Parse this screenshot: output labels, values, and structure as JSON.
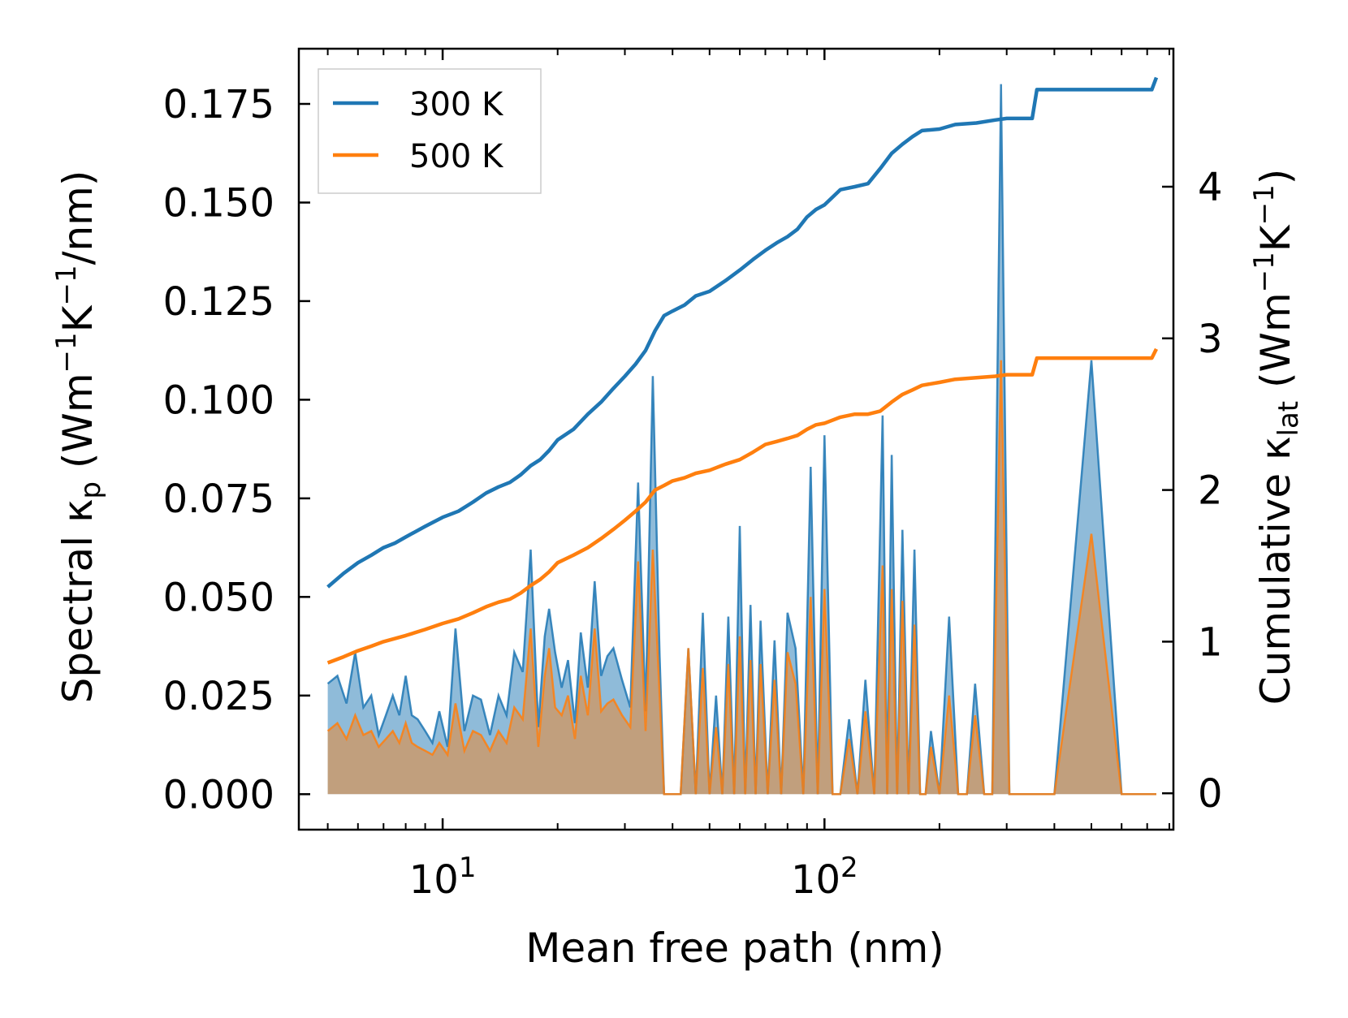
{
  "chart_data": {
    "type": "line",
    "xscale": "log",
    "xlabel": "Mean free path (nm)",
    "xlim": [
      4.2,
      820
    ],
    "x_ticks": [
      {
        "value": 10,
        "base": "10",
        "exp": "1"
      },
      {
        "value": 100,
        "base": "10",
        "exp": "2"
      }
    ],
    "y_left": {
      "label_parts": {
        "prefix": "Spectral κ",
        "sub": "p",
        "unit_open": " (Wm",
        "sup1": "−1",
        "mid": "K",
        "sup2": "−1",
        "unit_close": "/nm)"
      },
      "ylim": [
        -0.009,
        0.189
      ],
      "ticks": [
        0.0,
        0.025,
        0.05,
        0.075,
        0.1,
        0.125,
        0.15,
        0.175
      ],
      "tick_labels": [
        "0.000",
        "0.025",
        "0.050",
        "0.075",
        "0.100",
        "0.125",
        "0.150",
        "0.175"
      ]
    },
    "y_right": {
      "label_parts": {
        "prefix": "Cumulative κ",
        "sub": "lat",
        "unit_open": " (Wm",
        "sup1": "−1",
        "mid": "K",
        "sup2": "−1",
        "unit_close": ")"
      },
      "ylim": [
        -0.24,
        4.91
      ],
      "ticks": [
        0,
        1,
        2,
        3,
        4
      ],
      "tick_labels": [
        "0",
        "1",
        "2",
        "3",
        "4"
      ]
    },
    "legend": {
      "position": "top-left",
      "entries": [
        "300 K",
        "500 K"
      ]
    },
    "series": [
      {
        "name": "300 K",
        "color": "#1f77b4",
        "cumulative": {
          "x": [
            5,
            5.5,
            6,
            6.5,
            7,
            7.5,
            8,
            9,
            10,
            11,
            12,
            13,
            14,
            15,
            16,
            17,
            18,
            19,
            20,
            22,
            24,
            26,
            28,
            30,
            32,
            34,
            36,
            38,
            40,
            43,
            46,
            50,
            55,
            60,
            65,
            70,
            75,
            80,
            85,
            90,
            95,
            100,
            110,
            120,
            130,
            140,
            150,
            160,
            170,
            180,
            200,
            220,
            250,
            280,
            300,
            330,
            350,
            360,
            380,
            400,
            450,
            500,
            600,
            700,
            720,
            740
          ],
          "y": [
            1.36,
            1.45,
            1.52,
            1.57,
            1.62,
            1.65,
            1.69,
            1.76,
            1.82,
            1.86,
            1.92,
            1.98,
            2.02,
            2.05,
            2.1,
            2.16,
            2.2,
            2.26,
            2.33,
            2.4,
            2.5,
            2.58,
            2.67,
            2.75,
            2.83,
            2.92,
            3.05,
            3.15,
            3.18,
            3.22,
            3.28,
            3.31,
            3.38,
            3.45,
            3.52,
            3.58,
            3.63,
            3.67,
            3.72,
            3.8,
            3.85,
            3.88,
            3.98,
            4.0,
            4.02,
            4.12,
            4.22,
            4.28,
            4.33,
            4.37,
            4.38,
            4.41,
            4.42,
            4.44,
            4.45,
            4.45,
            4.45,
            4.64,
            4.64,
            4.64,
            4.64,
            4.64,
            4.64,
            4.64,
            4.64,
            4.72
          ]
        },
        "spectral": {
          "x": [
            5,
            5.3,
            5.6,
            5.9,
            6.2,
            6.5,
            6.8,
            7.1,
            7.4,
            7.7,
            8.0,
            8.3,
            8.6,
            9.0,
            9.4,
            9.8,
            10.3,
            10.8,
            11.4,
            12.0,
            12.6,
            13.3,
            14.0,
            14.7,
            15.4,
            16.2,
            17.0,
            17.8,
            18.5,
            19.0,
            19.7,
            20.5,
            21.3,
            22.2,
            23.0,
            24.0,
            25.0,
            26.0,
            27.0,
            28.0,
            29.5,
            31.0,
            32.5,
            34.0,
            35.5,
            37.0,
            38.0,
            39.0,
            40.5,
            42.0,
            44.0,
            46.0,
            48.0,
            50.0,
            52.0,
            54.0,
            56.0,
            58.0,
            60.0,
            62.0,
            64.0,
            66.0,
            68.0,
            71.0,
            74.0,
            77.0,
            80.0,
            84.0,
            88.0,
            92.0,
            96.0,
            100,
            105,
            110,
            116,
            122,
            128,
            135,
            142,
            146,
            150,
            155,
            160,
            166,
            172,
            178,
            184,
            190,
            200,
            212,
            224,
            236,
            248,
            262,
            275,
            290,
            305,
            320,
            340,
            350,
            360,
            370,
            400,
            500,
            600,
            700,
            740
          ],
          "y_lines": [
            0.028,
            0.03,
            0.023,
            0.036,
            0.022,
            0.025,
            0.015,
            0.02,
            0.025,
            0.02,
            0.03,
            0.02,
            0.019,
            0.016,
            0.013,
            0.021,
            0.012,
            0.042,
            0.016,
            0.025,
            0.024,
            0.015,
            0.025,
            0.02,
            0.036,
            0.031,
            0.062,
            0.017,
            0.04,
            0.047,
            0.036,
            0.027,
            0.034,
            0.018,
            0.041,
            0.027,
            0.054,
            0.03,
            0.035,
            0.037,
            0.029,
            0.022,
            0.079,
            0.021,
            0.106,
            0.035,
            0.0,
            0.0,
            0.0,
            0.0,
            0.037,
            0.0,
            0.046,
            0.0,
            0.025,
            0.0,
            0.045,
            0.0,
            0.068,
            0.0,
            0.048,
            0.0,
            0.044,
            0.0,
            0.039,
            0.0,
            0.046,
            0.037,
            0.0,
            0.083,
            0.0,
            0.091,
            0.0,
            0.0,
            0.019,
            0.0,
            0.029,
            0.0,
            0.096,
            0.0,
            0.086,
            0.0,
            0.067,
            0.0,
            0.062,
            0.0,
            0.0,
            0.016,
            0.0,
            0.045,
            0.0,
            0.0,
            0.028,
            0.0,
            0.0,
            0.18,
            0.0,
            0.0,
            0.0,
            0.0,
            0.0,
            0.0,
            0.0,
            0.11,
            0.0,
            0.0,
            0.0
          ],
          "y": [
            0.028,
            0.03,
            0.023,
            0.036,
            0.022,
            0.025,
            0.015,
            0.02,
            0.025,
            0.02,
            0.03,
            0.02,
            0.019,
            0.016,
            0.013,
            0.021,
            0.012,
            0.042,
            0.016,
            0.025,
            0.024,
            0.015,
            0.025,
            0.02,
            0.036,
            0.031,
            0.062,
            0.017,
            0.04,
            0.047,
            0.036,
            0.027,
            0.034,
            0.018,
            0.041,
            0.027,
            0.054,
            0.03,
            0.035,
            0.037,
            0.029,
            0.022,
            0.079,
            0.021,
            0.106,
            0.035,
            0.0,
            0.0,
            0.0,
            0.0,
            0.037,
            0.0,
            0.046,
            0.0,
            0.025,
            0.0,
            0.045,
            0.0,
            0.068,
            0.0,
            0.048,
            0.0,
            0.044,
            0.0,
            0.039,
            0.0,
            0.046,
            0.037,
            0.0,
            0.083,
            0.0,
            0.091,
            0.0,
            0.0,
            0.019,
            0.0,
            0.029,
            0.0,
            0.096,
            0.0,
            0.086,
            0.0,
            0.067,
            0.0,
            0.062,
            0.0,
            0.0,
            0.016,
            0.0,
            0.045,
            0.0,
            0.0,
            0.028,
            0.0,
            0.0,
            0.18,
            0.0,
            0.0,
            0.0,
            0.0,
            0.0,
            0.0,
            0.0,
            0.11,
            0.0,
            0.0,
            0.0
          ]
        }
      },
      {
        "name": "500 K",
        "color": "#ff7f0e",
        "cumulative": {
          "x": [
            5,
            5.5,
            6,
            6.5,
            7,
            7.5,
            8,
            9,
            10,
            11,
            12,
            13,
            14,
            15,
            16,
            17,
            18,
            19,
            20,
            22,
            24,
            26,
            28,
            30,
            32,
            34,
            36,
            38,
            40,
            43,
            46,
            50,
            55,
            60,
            65,
            70,
            75,
            80,
            85,
            90,
            95,
            100,
            110,
            120,
            130,
            140,
            150,
            160,
            170,
            180,
            200,
            220,
            250,
            280,
            300,
            330,
            350,
            360,
            380,
            400,
            450,
            500,
            600,
            700,
            720,
            740
          ],
          "y": [
            0.86,
            0.9,
            0.94,
            0.97,
            1.0,
            1.02,
            1.04,
            1.08,
            1.12,
            1.15,
            1.19,
            1.23,
            1.26,
            1.28,
            1.32,
            1.37,
            1.41,
            1.46,
            1.52,
            1.57,
            1.62,
            1.68,
            1.74,
            1.8,
            1.86,
            1.92,
            2.0,
            2.03,
            2.06,
            2.08,
            2.11,
            2.13,
            2.17,
            2.2,
            2.25,
            2.3,
            2.32,
            2.34,
            2.36,
            2.4,
            2.43,
            2.44,
            2.48,
            2.5,
            2.5,
            2.52,
            2.58,
            2.63,
            2.66,
            2.69,
            2.71,
            2.73,
            2.74,
            2.75,
            2.76,
            2.76,
            2.76,
            2.87,
            2.87,
            2.87,
            2.87,
            2.87,
            2.87,
            2.87,
            2.87,
            2.93
          ]
        },
        "spectral": {
          "x": [
            5,
            5.3,
            5.6,
            5.9,
            6.2,
            6.5,
            6.8,
            7.1,
            7.4,
            7.7,
            8.0,
            8.3,
            8.6,
            9.0,
            9.4,
            9.8,
            10.3,
            10.8,
            11.4,
            12.0,
            12.6,
            13.3,
            14.0,
            14.7,
            15.4,
            16.2,
            17.0,
            17.8,
            18.5,
            19.0,
            19.7,
            20.5,
            21.3,
            22.2,
            23.0,
            24.0,
            25.0,
            26.0,
            27.0,
            28.0,
            29.5,
            31.0,
            32.5,
            34.0,
            35.5,
            37.0,
            38.0,
            39.0,
            40.5,
            42.0,
            44.0,
            46.0,
            48.0,
            50.0,
            52.0,
            54.0,
            56.0,
            58.0,
            60.0,
            62.0,
            64.0,
            66.0,
            68.0,
            71.0,
            74.0,
            77.0,
            80.0,
            84.0,
            88.0,
            92.0,
            96.0,
            100,
            105,
            110,
            116,
            122,
            128,
            135,
            142,
            146,
            150,
            155,
            160,
            166,
            172,
            178,
            184,
            190,
            200,
            212,
            224,
            236,
            248,
            262,
            275,
            290,
            305,
            320,
            340,
            350,
            360,
            370,
            400,
            500,
            600,
            700,
            740
          ],
          "y": [
            0.016,
            0.018,
            0.014,
            0.02,
            0.015,
            0.016,
            0.012,
            0.014,
            0.016,
            0.013,
            0.018,
            0.013,
            0.012,
            0.011,
            0.01,
            0.013,
            0.01,
            0.023,
            0.011,
            0.016,
            0.015,
            0.011,
            0.016,
            0.013,
            0.022,
            0.019,
            0.042,
            0.012,
            0.03,
            0.037,
            0.022,
            0.02,
            0.025,
            0.014,
            0.03,
            0.02,
            0.042,
            0.021,
            0.023,
            0.024,
            0.02,
            0.017,
            0.059,
            0.016,
            0.062,
            0.025,
            0.0,
            0.0,
            0.0,
            0.0,
            0.037,
            0.0,
            0.032,
            0.0,
            0.017,
            0.0,
            0.033,
            0.0,
            0.04,
            0.0,
            0.034,
            0.0,
            0.033,
            0.0,
            0.029,
            0.0,
            0.036,
            0.028,
            0.0,
            0.05,
            0.0,
            0.052,
            0.0,
            0.0,
            0.014,
            0.0,
            0.021,
            0.0,
            0.058,
            0.0,
            0.052,
            0.0,
            0.049,
            0.0,
            0.043,
            0.0,
            0.0,
            0.012,
            0.0,
            0.025,
            0.0,
            0.0,
            0.02,
            0.0,
            0.0,
            0.11,
            0.0,
            0.0,
            0.0,
            0.0,
            0.0,
            0.0,
            0.0,
            0.066,
            0.0,
            0.0,
            0.0
          ]
        }
      }
    ]
  }
}
